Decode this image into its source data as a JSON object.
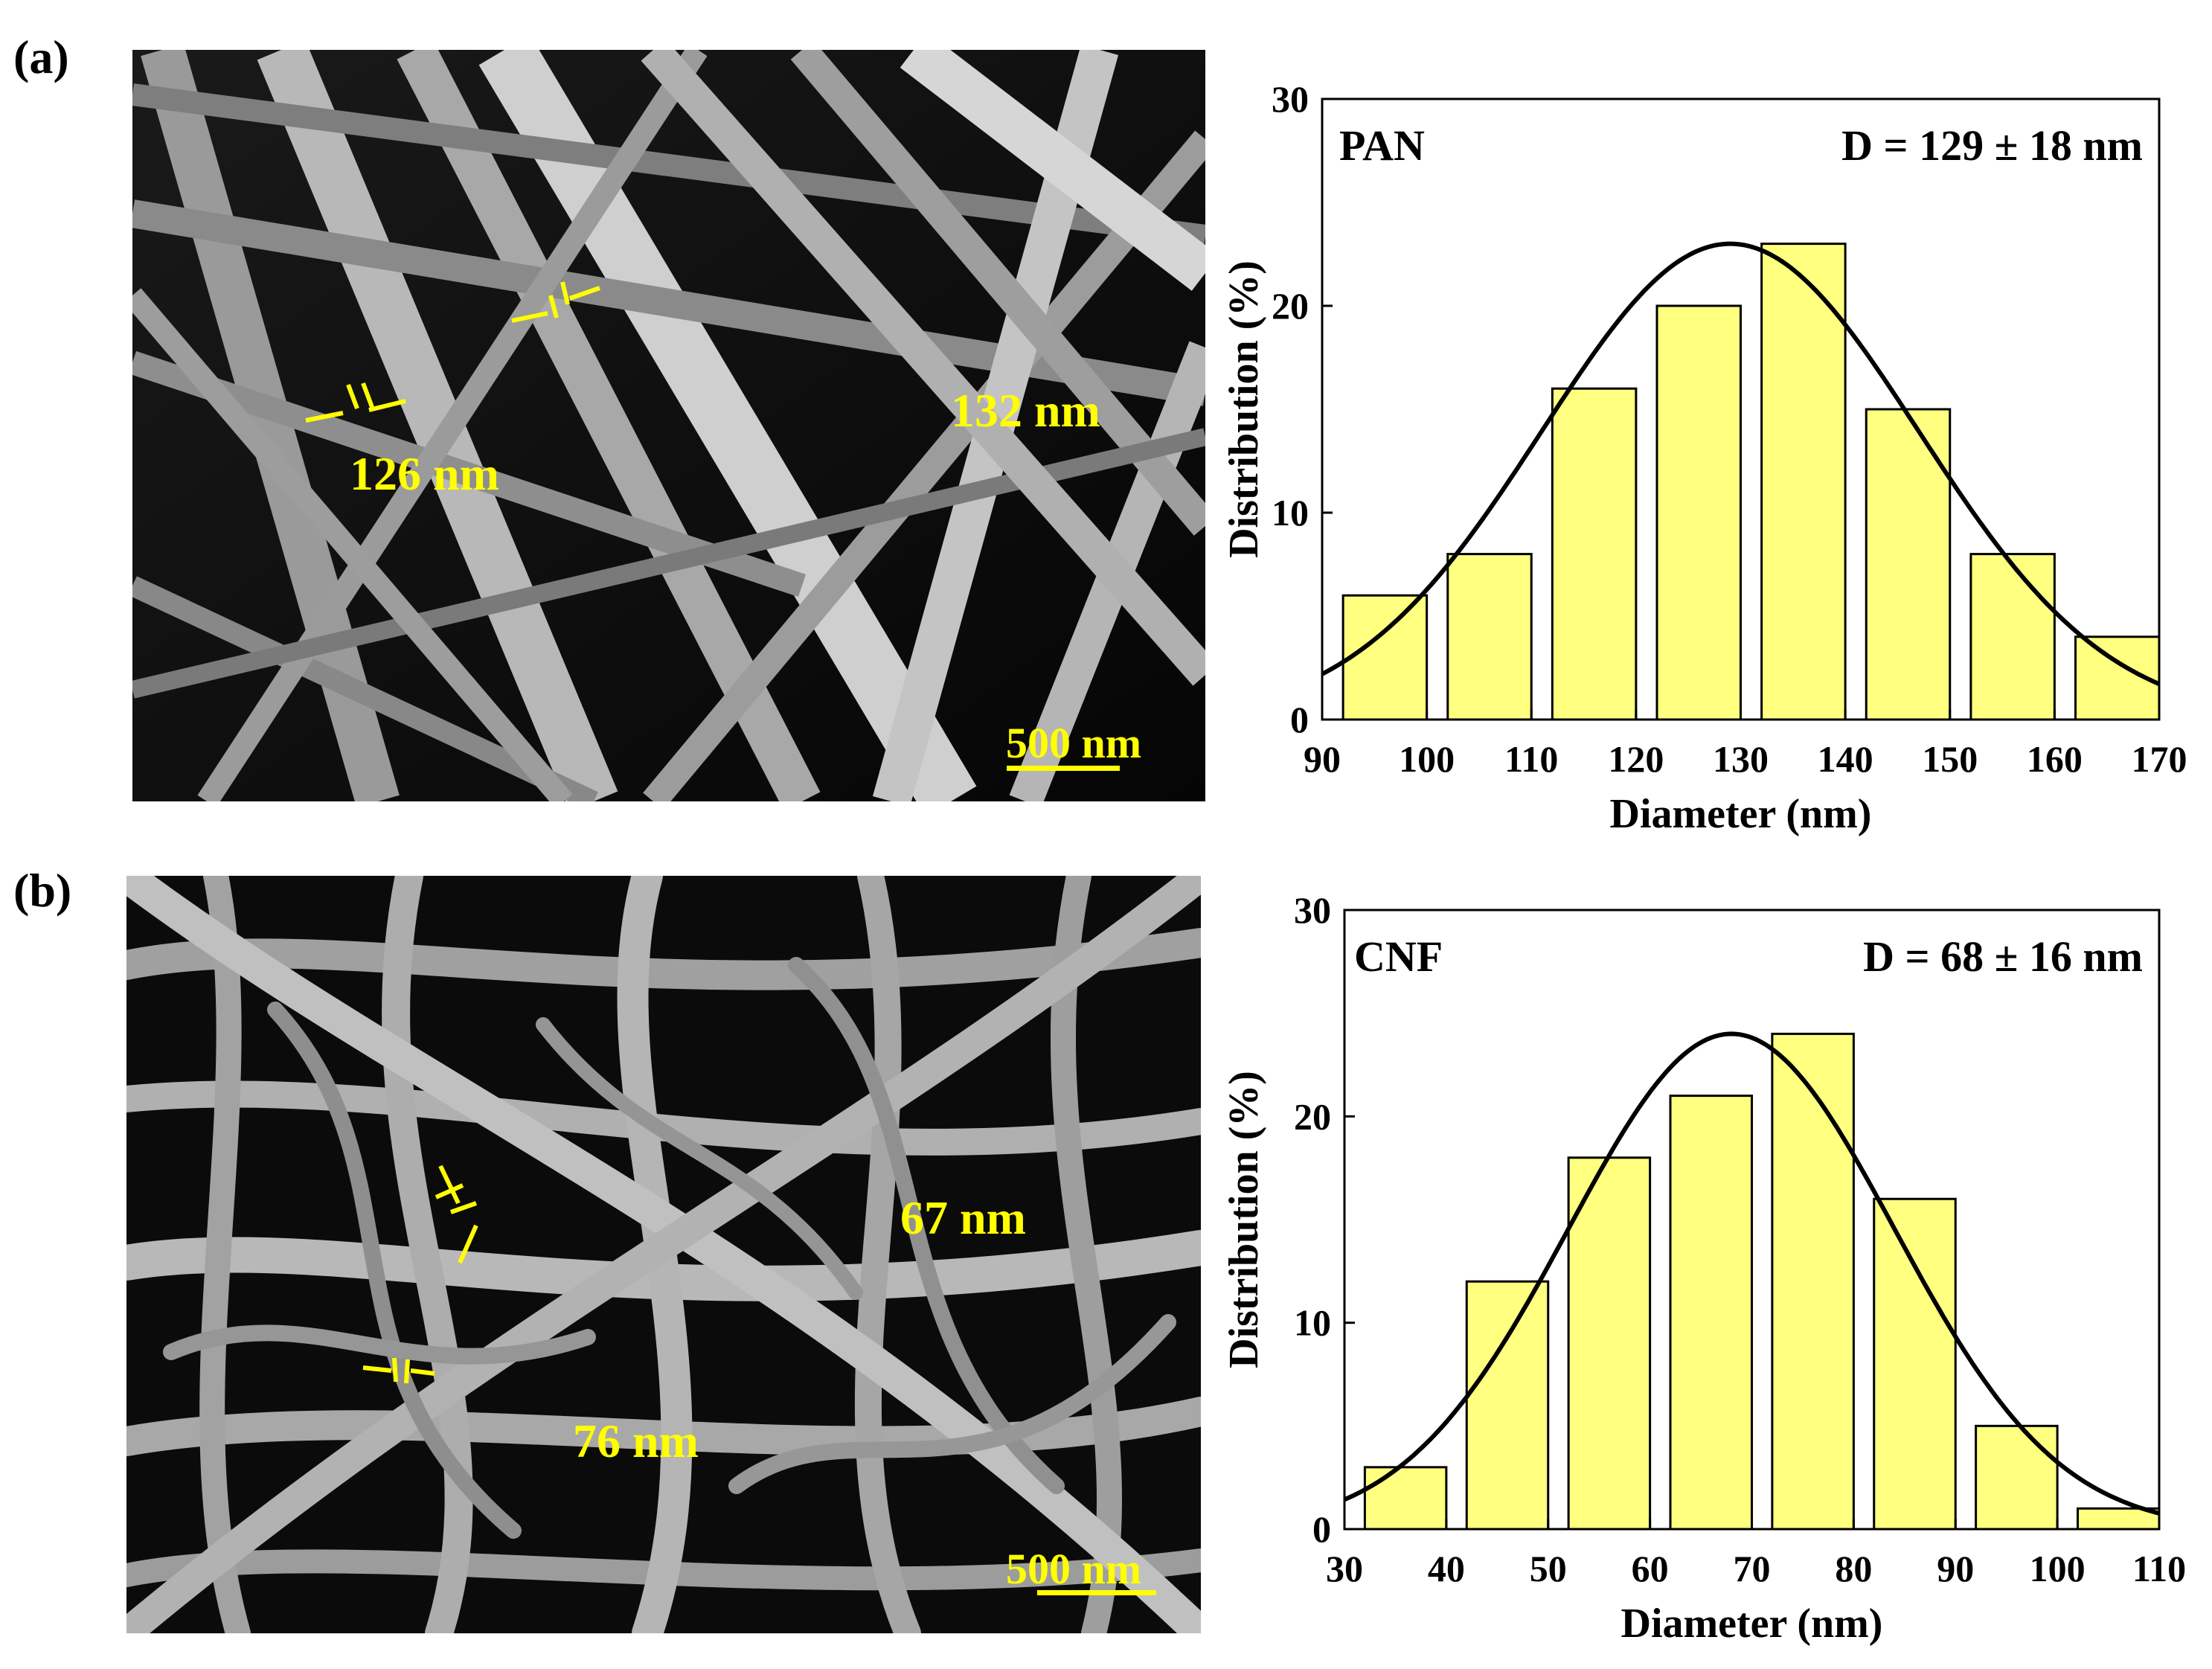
{
  "panels": [
    {
      "label": "(a)",
      "micrograph": {
        "scale_bar": "500 nm",
        "measurements": [
          "126 nm",
          "132 nm"
        ],
        "annotation_color": "#ffff00"
      }
    },
    {
      "label": "(b)",
      "micrograph": {
        "scale_bar": "500 nm",
        "measurements": [
          "67 nm",
          "76 nm"
        ],
        "annotation_color": "#ffff00"
      }
    }
  ],
  "chart_data": [
    {
      "type": "bar",
      "title": "PAN",
      "stat": "D = 129 ± 18 nm",
      "xlabel": "Diameter (nm)",
      "ylabel": "Distribution (%)",
      "xlim": [
        90,
        170
      ],
      "ylim": [
        0,
        30
      ],
      "xticks": [
        90,
        100,
        110,
        120,
        130,
        140,
        150,
        160,
        170
      ],
      "yticks": [
        0,
        10,
        20,
        30
      ],
      "bins": [
        [
          92,
          100
        ],
        [
          102,
          110
        ],
        [
          112,
          120
        ],
        [
          122,
          130
        ],
        [
          132,
          140
        ],
        [
          142,
          150
        ],
        [
          152,
          160
        ],
        [
          162,
          170
        ]
      ],
      "values": [
        6,
        8,
        16,
        20,
        23,
        15,
        8,
        4
      ],
      "fit": {
        "type": "gaussian",
        "mean": 129,
        "sd": 18,
        "peak": 23
      },
      "bar_color": "#ffff80",
      "line_color": "#000000"
    },
    {
      "type": "bar",
      "title": "CNF",
      "stat": "D = 68 ± 16 nm",
      "xlabel": "Diameter (nm)",
      "ylabel": "Distribution (%)",
      "xlim": [
        30,
        110
      ],
      "ylim": [
        0,
        30
      ],
      "xticks": [
        30,
        40,
        50,
        60,
        70,
        80,
        90,
        100,
        110
      ],
      "yticks": [
        0,
        10,
        20,
        30
      ],
      "bins": [
        [
          32,
          40
        ],
        [
          42,
          50
        ],
        [
          52,
          60
        ],
        [
          62,
          70
        ],
        [
          72,
          80
        ],
        [
          82,
          90
        ],
        [
          92,
          100
        ],
        [
          102,
          110
        ]
      ],
      "values": [
        3,
        12,
        18,
        21,
        24,
        16,
        5,
        1
      ],
      "fit": {
        "type": "gaussian",
        "mean": 68,
        "sd": 16,
        "peak": 24
      },
      "bar_color": "#ffff80",
      "line_color": "#000000"
    }
  ]
}
